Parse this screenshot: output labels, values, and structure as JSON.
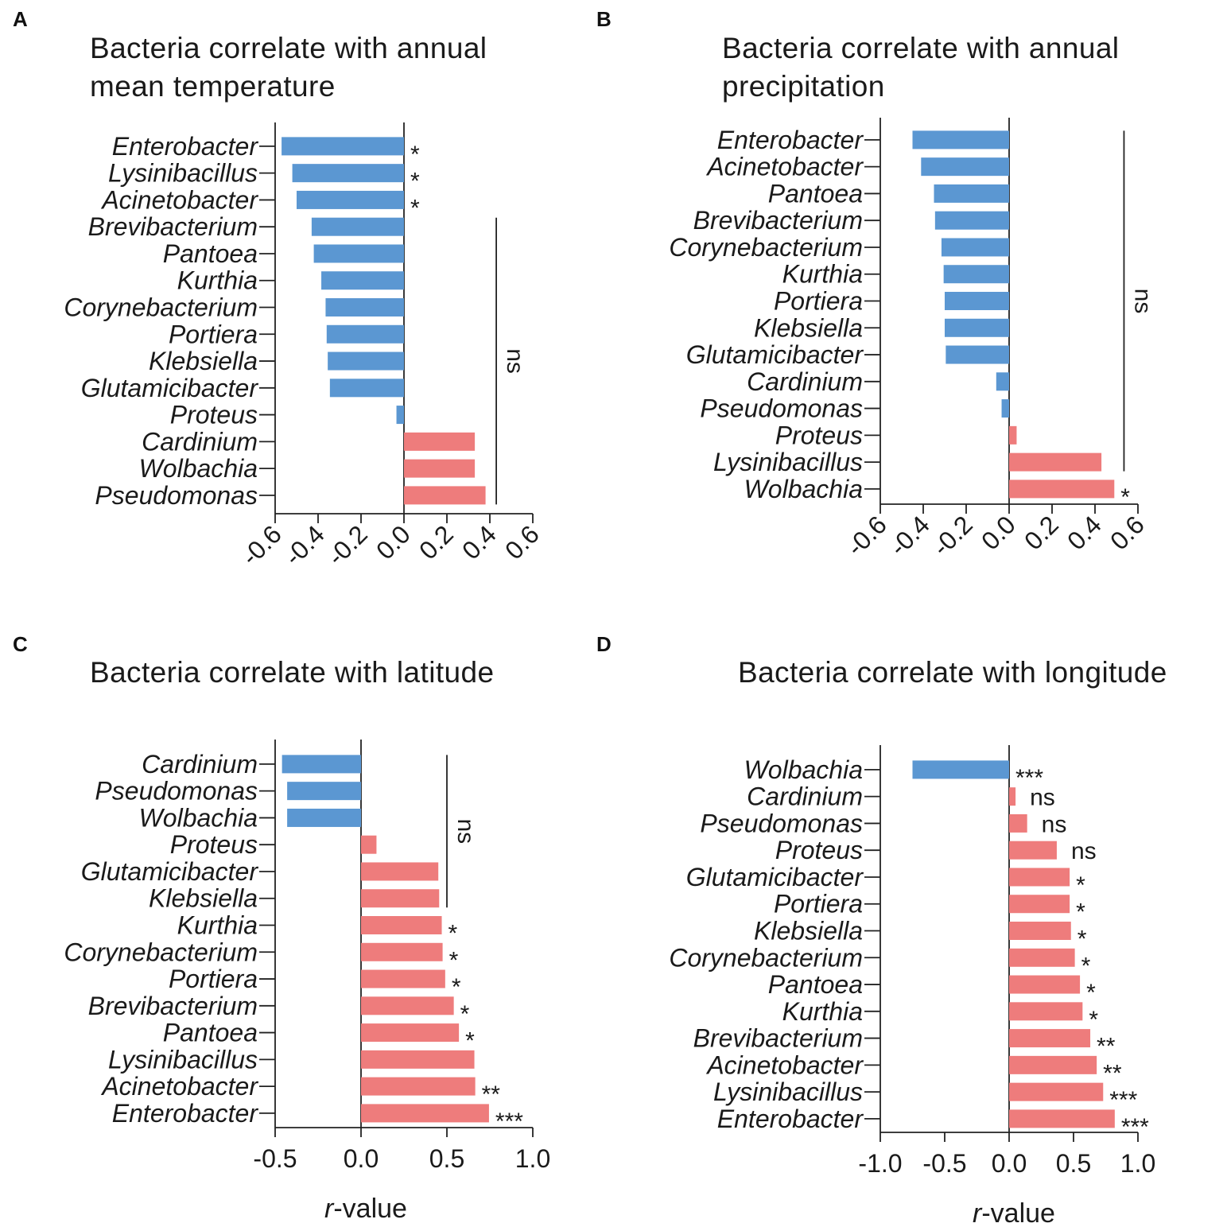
{
  "colors": {
    "negative": "#5b97d2",
    "positive": "#ee7c7c"
  },
  "chart_data": [
    {
      "panel": "A",
      "type": "bar",
      "orientation": "horizontal",
      "title_lines": [
        "Bacteria correlate with annual",
        "mean temperature"
      ],
      "xlabel": "",
      "xlim": [
        -0.6,
        0.6
      ],
      "xticks": [
        -0.6,
        -0.4,
        -0.2,
        0.0,
        0.2,
        0.4,
        0.6
      ],
      "xtick_labels": [
        "-0.6",
        "-0.4",
        "-0.2",
        "0.0",
        "0.2",
        "0.4",
        "0.6"
      ],
      "rotated_ticks": true,
      "categories": [
        "Enterobacter",
        "Lysinibacillus",
        "Acinetobacter",
        "Brevibacterium",
        "Pantoea",
        "Kurthia",
        "Corynebacterium",
        "Portiera",
        "Klebsiella",
        "Glutamicibacter",
        "Proteus",
        "Cardinium",
        "Wolbachia",
        "Pseudomonas"
      ],
      "values": [
        -0.57,
        -0.52,
        -0.5,
        -0.43,
        -0.42,
        -0.385,
        -0.365,
        -0.36,
        -0.355,
        -0.345,
        -0.035,
        0.33,
        0.33,
        0.38
      ],
      "significance": [
        "*",
        "*",
        "*",
        "",
        "",
        "",
        "",
        "",
        "",
        "",
        "",
        "",
        "",
        ""
      ],
      "ns_bracket": {
        "label": "ns",
        "from": 3,
        "to": 13,
        "at": 0.43
      }
    },
    {
      "panel": "B",
      "type": "bar",
      "orientation": "horizontal",
      "title_lines": [
        "Bacteria correlate with annual",
        "precipitation"
      ],
      "xlabel": "",
      "xlim": [
        -0.6,
        0.6
      ],
      "xticks": [
        -0.6,
        -0.4,
        -0.2,
        0.0,
        0.2,
        0.4,
        0.6
      ],
      "xtick_labels": [
        "-0.6",
        "-0.4",
        "-0.2",
        "0.0",
        "0.2",
        "0.4",
        "0.6"
      ],
      "rotated_ticks": true,
      "categories": [
        "Enterobacter",
        "Acinetobacter",
        "Pantoea",
        "Brevibacterium",
        "Corynebacterium",
        "Kurthia",
        "Portiera",
        "Klebsiella",
        "Glutamicibacter",
        "Cardinium",
        "Pseudomonas",
        "Proteus",
        "Lysinibacillus",
        "Wolbachia"
      ],
      "values": [
        -0.45,
        -0.41,
        -0.35,
        -0.345,
        -0.315,
        -0.305,
        -0.3,
        -0.3,
        -0.295,
        -0.06,
        -0.035,
        0.035,
        0.43,
        0.49
      ],
      "significance": [
        "",
        "",
        "",
        "",
        "",
        "",
        "",
        "",
        "",
        "",
        "",
        "",
        "",
        "*"
      ],
      "ns_bracket": {
        "label": "ns",
        "from": 0,
        "to": 12,
        "at": 0.535
      }
    },
    {
      "panel": "C",
      "type": "bar",
      "orientation": "horizontal",
      "title_lines": [
        "Bacteria correlate with latitude"
      ],
      "xlabel_italic": "r",
      "xlabel_rest": "-value",
      "xlim": [
        -0.5,
        1.0
      ],
      "xticks": [
        -0.5,
        0.0,
        0.5,
        1.0
      ],
      "xtick_labels": [
        "-0.5",
        "0.0",
        "0.5",
        "1.0"
      ],
      "rotated_ticks": false,
      "categories": [
        "Cardinium",
        "Pseudomonas",
        "Wolbachia",
        "Proteus",
        "Glutamicibacter",
        "Klebsiella",
        "Kurthia",
        "Corynebacterium",
        "Portiera",
        "Brevibacterium",
        "Pantoea",
        "Lysinibacillus",
        "Acinetobacter",
        "Enterobacter"
      ],
      "values": [
        -0.46,
        -0.43,
        -0.43,
        0.09,
        0.45,
        0.455,
        0.47,
        0.475,
        0.49,
        0.54,
        0.57,
        0.66,
        0.665,
        0.745
      ],
      "significance": [
        "",
        "",
        "",
        "",
        "",
        "",
        "*",
        "*",
        "*",
        "*",
        "*",
        "",
        "**",
        "***"
      ],
      "ns_bracket": {
        "label": "ns",
        "from": 0,
        "to": 5,
        "at": 0.5
      }
    },
    {
      "panel": "D",
      "type": "bar",
      "orientation": "horizontal",
      "title_lines": [
        "Bacteria correlate with longitude"
      ],
      "xlabel_italic": "r",
      "xlabel_rest": "-value",
      "xlim": [
        -1.0,
        1.0
      ],
      "xticks": [
        -1.0,
        -0.5,
        0.0,
        0.5,
        1.0
      ],
      "xtick_labels": [
        "-1.0",
        "-0.5",
        "0.0",
        "0.5",
        "1.0"
      ],
      "rotated_ticks": false,
      "categories": [
        "Wolbachia",
        "Cardinium",
        "Pseudomonas",
        "Proteus",
        "Glutamicibacter",
        "Portiera",
        "Klebsiella",
        "Corynebacterium",
        "Pantoea",
        "Kurthia",
        "Brevibacterium",
        "Acinetobacter",
        "Lysinibacillus",
        "Enterobacter"
      ],
      "values": [
        -0.75,
        0.05,
        0.14,
        0.37,
        0.47,
        0.47,
        0.48,
        0.51,
        0.55,
        0.57,
        0.63,
        0.68,
        0.73,
        0.82
      ],
      "significance": [
        "***",
        "ns",
        "ns",
        "ns",
        "*",
        "*",
        "*",
        "*",
        "*",
        "*",
        "**",
        "**",
        "***",
        "***"
      ],
      "ns_bracket": null
    }
  ]
}
